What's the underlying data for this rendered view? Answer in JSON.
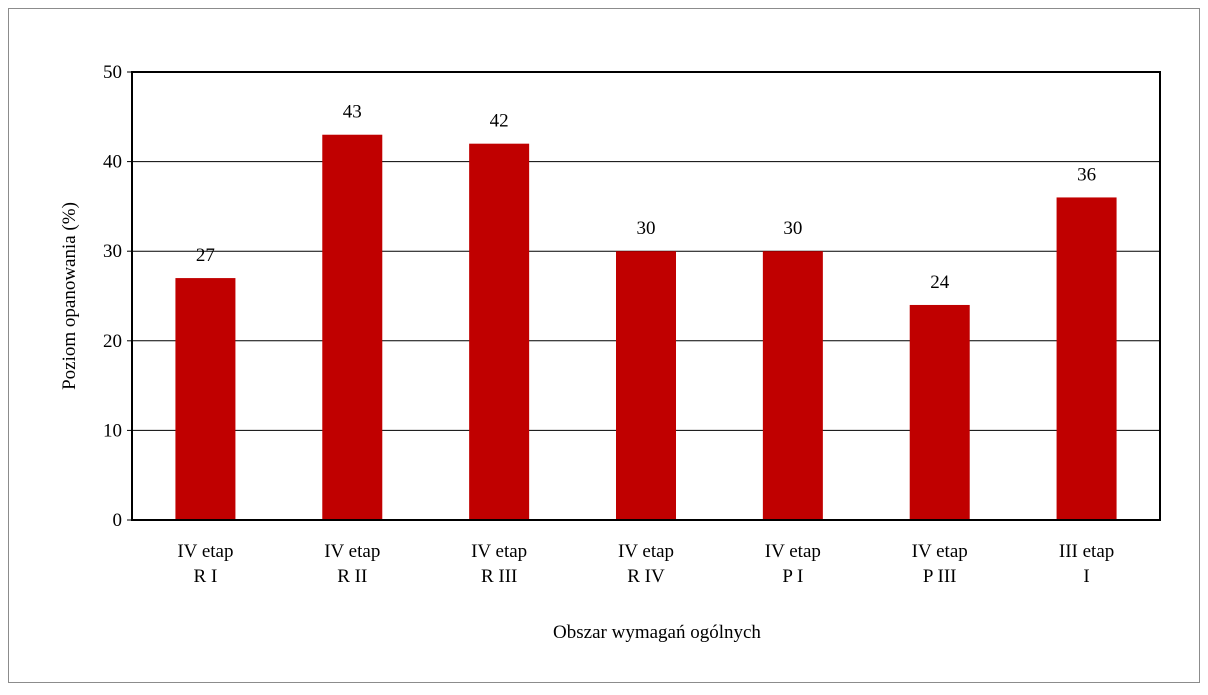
{
  "chart_data": {
    "type": "bar",
    "categories": [
      "IV etap\nR I",
      "IV etap\nR II",
      "IV etap\nR III",
      "IV etap\nR IV",
      "IV etap\nP I",
      "IV etap\nP III",
      "III etap\nI"
    ],
    "values": [
      27,
      43,
      42,
      30,
      30,
      24,
      36
    ],
    "color": "#c00000",
    "ylim": [
      0,
      50
    ],
    "yticks": [
      0,
      10,
      20,
      30,
      40,
      50
    ],
    "grid": true,
    "xlabel": "Obszar wymagań ogólnych",
    "ylabel": "Poziom opanowania (%)"
  }
}
